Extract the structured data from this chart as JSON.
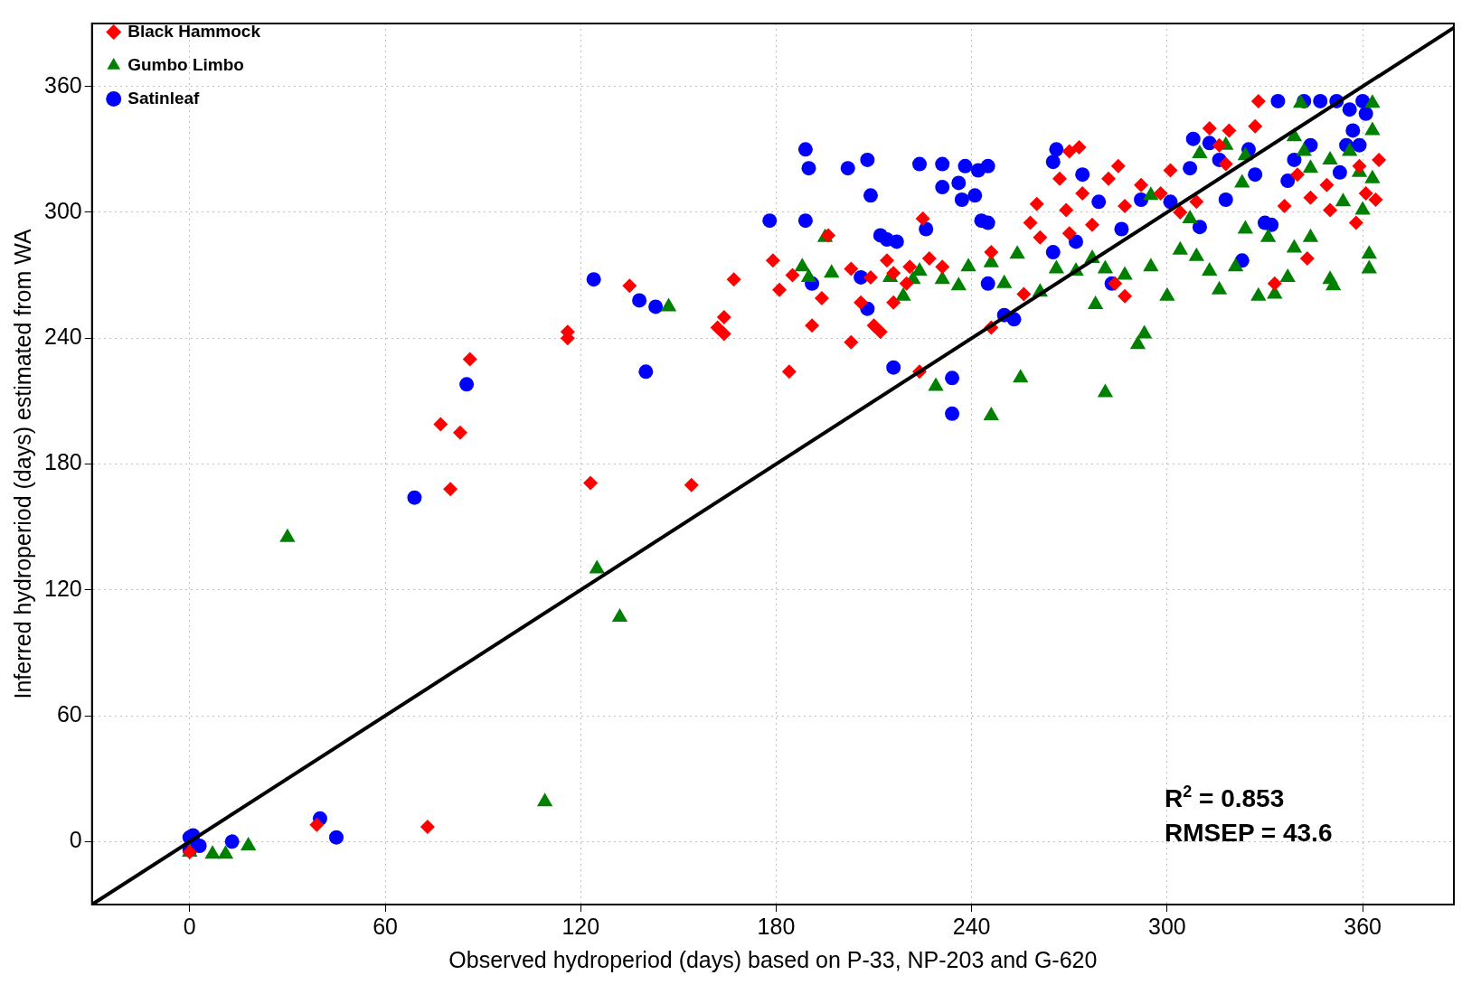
{
  "chart_data": {
    "type": "scatter",
    "xlabel": "Observed hydroperiod (days) based on P-33, NP-203 and G-620",
    "ylabel": "Inferred hydroperiod (days) estimated from WA",
    "xlim": [
      -30,
      388
    ],
    "ylim": [
      -30,
      390
    ],
    "xticks": [
      0,
      60,
      120,
      180,
      240,
      300,
      360
    ],
    "yticks": [
      0,
      60,
      120,
      180,
      240,
      300,
      360
    ],
    "grid": true,
    "legend": "top left",
    "annotations": [
      "R$^{2}$ = 0.853",
      "RMSEP = 43.6"
    ],
    "series": [
      {
        "name": "Black Hammock",
        "color": "#ff0000",
        "marker": "diamond",
        "x": [
          0,
          39,
          73,
          77,
          80,
          83,
          86,
          116,
          116,
          123,
          135,
          154,
          164,
          162,
          164,
          167,
          179,
          181,
          184,
          185,
          191,
          194,
          196,
          203,
          203,
          206,
          209,
          210,
          212,
          214,
          216,
          216,
          220,
          221,
          224,
          225,
          227,
          231,
          246,
          246,
          256,
          258,
          260,
          261,
          267,
          270,
          273,
          269,
          270,
          274,
          277,
          282,
          285,
          287,
          287,
          292,
          298,
          301,
          304,
          309,
          313,
          316,
          319,
          327,
          328,
          333,
          336,
          340,
          343,
          344,
          349,
          350,
          358,
          361,
          364,
          365,
          359,
          318,
          284
        ],
        "values": [
          -5,
          8,
          7,
          199,
          168,
          195,
          230,
          243,
          240,
          171,
          265,
          170,
          250,
          245,
          242,
          268,
          277,
          263,
          224,
          270,
          246,
          259,
          289,
          273,
          238,
          257,
          269,
          246,
          243,
          277,
          271,
          257,
          266,
          274,
          224,
          297,
          278,
          274,
          245,
          281,
          261,
          295,
          304,
          288,
          316,
          329,
          331,
          301,
          290,
          309,
          294,
          316,
          322,
          303,
          260,
          313,
          309,
          320,
          300,
          305,
          340,
          332,
          339,
          341,
          353,
          266,
          303,
          318,
          278,
          307,
          313,
          301,
          295,
          309,
          306,
          325,
          322,
          323,
          266
        ]
      },
      {
        "name": "Gumbo Limbo",
        "color": "#008000",
        "marker": "triangle",
        "x": [
          0,
          7,
          11,
          18,
          30,
          109,
          125,
          132,
          147,
          188,
          190,
          195,
          197,
          215,
          219,
          222,
          224,
          229,
          231,
          236,
          239,
          246,
          246,
          250,
          254,
          255,
          261,
          266,
          272,
          278,
          281,
          277,
          281,
          287,
          291,
          293,
          295,
          295,
          300,
          304,
          307,
          309,
          313,
          316,
          321,
          324,
          328,
          331,
          333,
          337,
          339,
          341,
          342,
          344,
          350,
          351,
          354,
          356,
          360,
          362,
          362,
          363,
          363,
          363,
          359,
          318,
          323,
          339,
          344,
          350,
          324,
          310
        ],
        "values": [
          -5,
          -6,
          -6,
          -2,
          145,
          19,
          130,
          107,
          255,
          274,
          269,
          288,
          271,
          269,
          260,
          268,
          272,
          217,
          268,
          265,
          274,
          276,
          203,
          266,
          280,
          221,
          262,
          273,
          272,
          256,
          214,
          278,
          273,
          270,
          237,
          242,
          308,
          274,
          260,
          282,
          297,
          279,
          272,
          263,
          274,
          292,
          260,
          288,
          261,
          269,
          283,
          352,
          329,
          288,
          268,
          265,
          305,
          329,
          301,
          280,
          273,
          352,
          339,
          316,
          319,
          332,
          314,
          336,
          321,
          325,
          327,
          328
        ]
      },
      {
        "name": "Satinleaf",
        "color": "#0000ff",
        "marker": "circle",
        "x": [
          0,
          1,
          3,
          0,
          13,
          40,
          45,
          69,
          85,
          124,
          138,
          140,
          143,
          178,
          189,
          189,
          190,
          191,
          202,
          206,
          208,
          208,
          209,
          212,
          214,
          217,
          216,
          224,
          226,
          231,
          231,
          234,
          234,
          236,
          238,
          237,
          241,
          242,
          243,
          245,
          245,
          245,
          250,
          253,
          265,
          265,
          266,
          272,
          274,
          279,
          283,
          286,
          292,
          301,
          307,
          308,
          310,
          313,
          316,
          318,
          323,
          325,
          327,
          330,
          334,
          337,
          339,
          342,
          347,
          352,
          353,
          355,
          356,
          357,
          359,
          360,
          361,
          332,
          344
        ],
        "values": [
          2,
          3,
          -2,
          -4,
          0,
          11,
          2,
          164,
          218,
          268,
          258,
          224,
          255,
          296,
          330,
          296,
          321,
          266,
          321,
          269,
          325,
          254,
          308,
          289,
          287,
          286,
          226,
          323,
          292,
          312,
          323,
          204,
          221,
          314,
          322,
          306,
          308,
          320,
          296,
          322,
          295,
          266,
          251,
          249,
          281,
          324,
          330,
          286,
          318,
          305,
          266,
          292,
          306,
          305,
          321,
          335,
          293,
          333,
          325,
          306,
          277,
          330,
          318,
          295,
          353,
          315,
          325,
          353,
          353,
          353,
          319,
          332,
          349,
          339,
          332,
          353,
          347,
          294,
          332
        ]
      },
      {
        "type": "line",
        "color": "#000000",
        "line_style": "solid",
        "marker": "none",
        "x": [
          -30,
          388
        ],
        "values": [
          -30,
          388
        ]
      }
    ]
  }
}
